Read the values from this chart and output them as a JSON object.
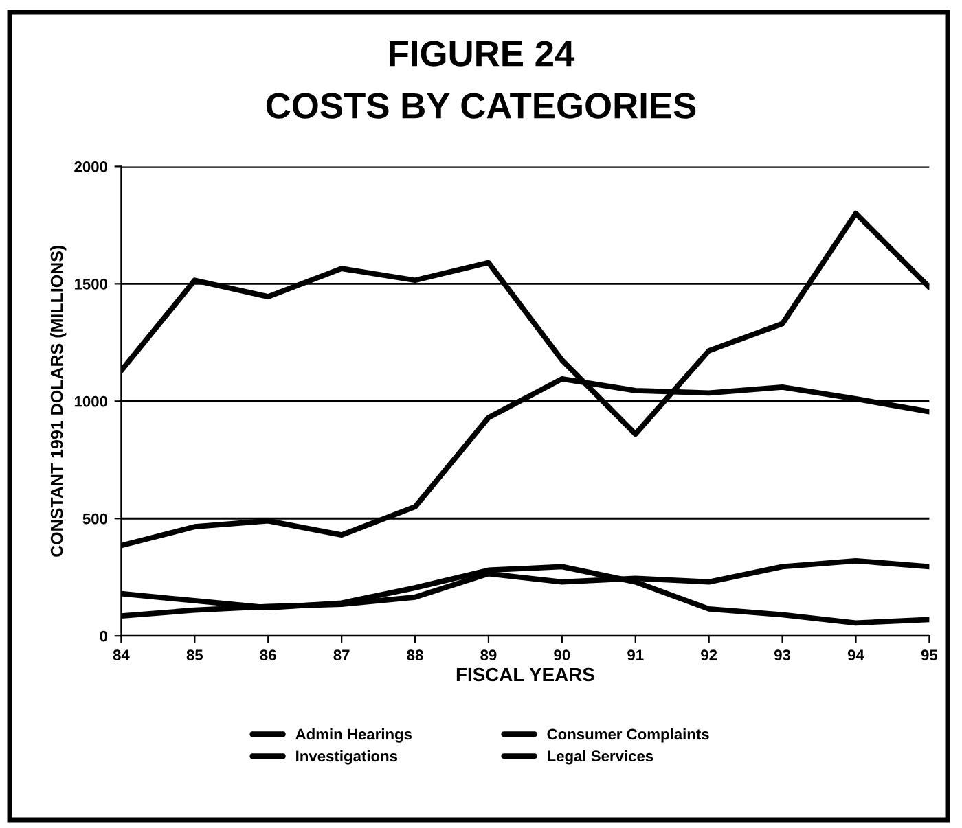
{
  "chart_data": {
    "type": "line",
    "title": "FIGURE 24\nCOSTS BY CATEGORIES",
    "xlabel": "FISCAL YEARS",
    "ylabel": "CONSTANT 1991 DOLARS (MILLIONS)",
    "categories": [
      "84",
      "85",
      "86",
      "87",
      "88",
      "89",
      "90",
      "91",
      "92",
      "93",
      "94",
      "95"
    ],
    "series": [
      {
        "name": "Admin Hearings",
        "color": "#000000",
        "values": [
          85,
          110,
          125,
          135,
          165,
          265,
          230,
          245,
          230,
          295,
          320,
          295
        ]
      },
      {
        "name": "Consumer Complaints",
        "color": "#000000",
        "values": [
          180,
          150,
          120,
          140,
          205,
          280,
          295,
          230,
          115,
          90,
          55,
          70
        ]
      },
      {
        "name": "Investigations",
        "color": "#000000",
        "values": [
          385,
          465,
          490,
          430,
          550,
          930,
          1095,
          1045,
          1035,
          1060,
          1010,
          955
        ]
      },
      {
        "name": "Legal Services",
        "color": "#000000",
        "values": [
          1130,
          1515,
          1445,
          1565,
          1515,
          1590,
          1175,
          860,
          1215,
          1330,
          1800,
          1485
        ]
      }
    ],
    "ylim": [
      0,
      2000
    ],
    "yticks": [
      0,
      500,
      1000,
      1500,
      2000
    ],
    "grid": "y",
    "legend": "bottom",
    "marker": "none",
    "line_style": "solid"
  }
}
